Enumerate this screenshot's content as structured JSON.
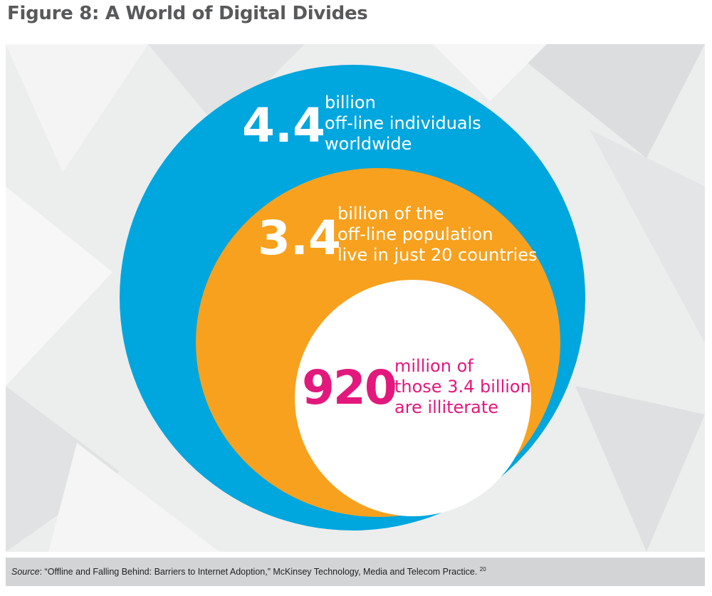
{
  "title": "Figure 8: A World of Digital Divides",
  "colors": {
    "outer": "#00a6de",
    "middle": "#f8a11e",
    "inner": "#ffffff",
    "highlight": "#e3187c"
  },
  "circles": [
    {
      "number": "4.4",
      "lines": [
        "billion",
        "off-line individuals",
        "worldwide"
      ]
    },
    {
      "number": "3.4",
      "lines": [
        "billion of the",
        "off-line population",
        "live in just 20 countries"
      ]
    },
    {
      "number": "920",
      "lines": [
        "million of",
        "those 3.4 billion",
        "are illiterate"
      ]
    }
  ],
  "source": {
    "label": "Source",
    "text": ": “Offline and Falling Behind: Barriers to Internet Adoption,” McKinsey Technology, Media and Telecom Practice. ",
    "footnote": "20"
  }
}
